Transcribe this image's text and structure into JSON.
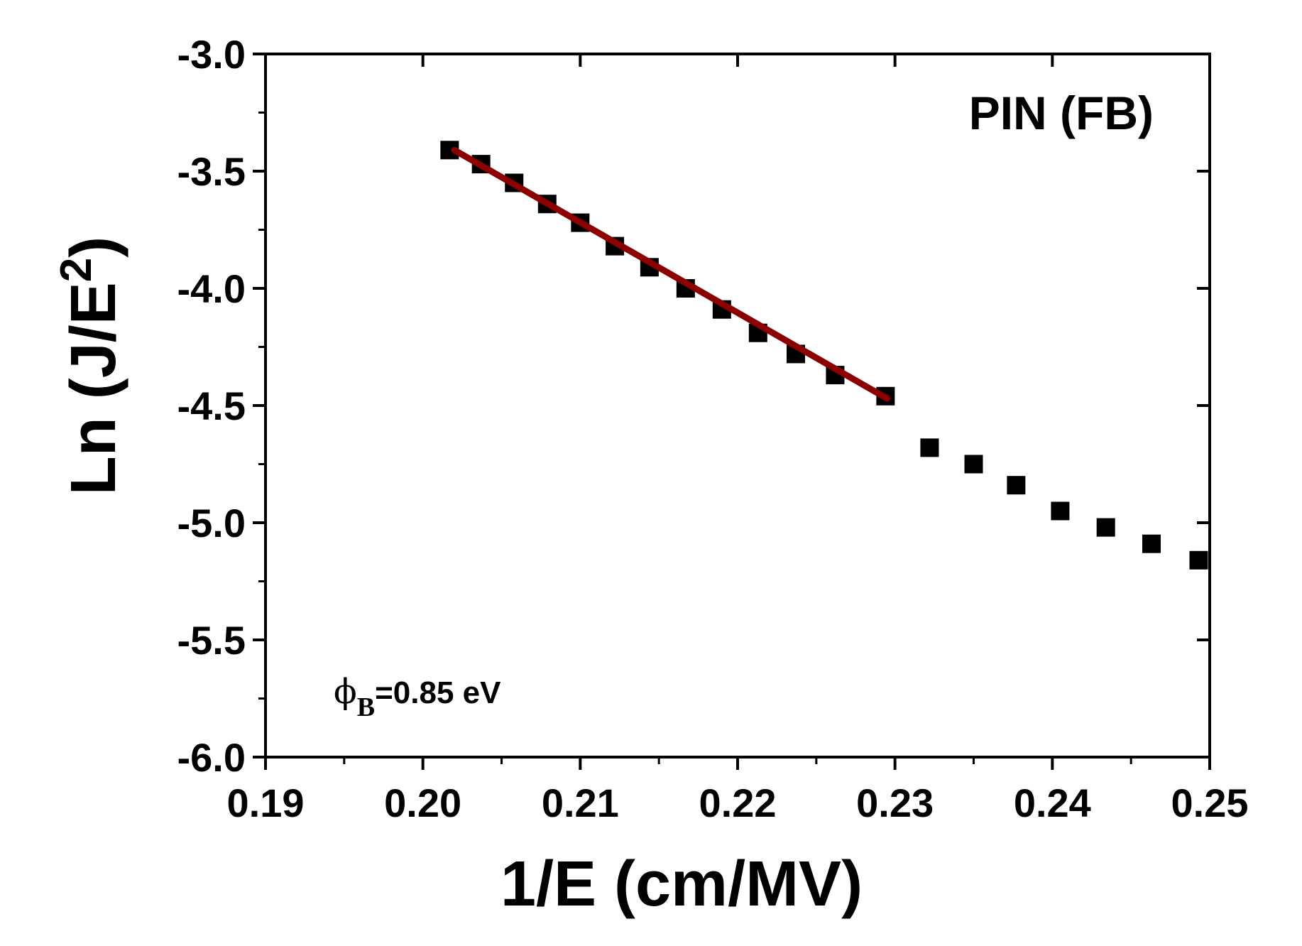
{
  "chart_data": {
    "type": "scatter",
    "title": "",
    "xlabel": "1/E (cm/MV)",
    "ylabel": "Ln (J/E2)",
    "ylabel_parts": {
      "main": "Ln (J/E",
      "sup": "2",
      "close": ")"
    },
    "xlim": [
      0.19,
      0.25
    ],
    "ylim": [
      -6.0,
      -3.0
    ],
    "x_ticks": [
      "0.19",
      "0.20",
      "0.21",
      "0.22",
      "0.23",
      "0.24",
      "0.25"
    ],
    "y_ticks": [
      "-3.0",
      "-3.5",
      "-4.0",
      "-4.5",
      "-5.0",
      "-5.5",
      "-6.0"
    ],
    "grid": false,
    "series": [
      {
        "marker": "square",
        "color": "#000000",
        "x": [
          0.2017,
          0.2037,
          0.2058,
          0.2079,
          0.21,
          0.2122,
          0.2144,
          0.2167,
          0.219,
          0.2213,
          0.2237,
          0.2262,
          0.2294,
          0.2322,
          0.235,
          0.2377,
          0.2405,
          0.2434,
          0.2463,
          0.2493
        ],
        "y": [
          -3.41,
          -3.47,
          -3.55,
          -3.64,
          -3.72,
          -3.82,
          -3.91,
          -4.0,
          -4.09,
          -4.19,
          -4.28,
          -4.37,
          -4.46,
          -4.68,
          -4.75,
          -4.84,
          -4.95,
          -5.02,
          -5.09,
          -5.16
        ]
      }
    ],
    "fit_line": {
      "color": "#8b0000",
      "x": [
        0.202,
        0.2295
      ],
      "y": [
        -3.41,
        -4.47
      ]
    },
    "annotations": {
      "legend_text": "PIN (FB)",
      "barrier_symbol": "ϕ",
      "barrier_sub": "B",
      "barrier_value": "=0.85 eV"
    }
  }
}
